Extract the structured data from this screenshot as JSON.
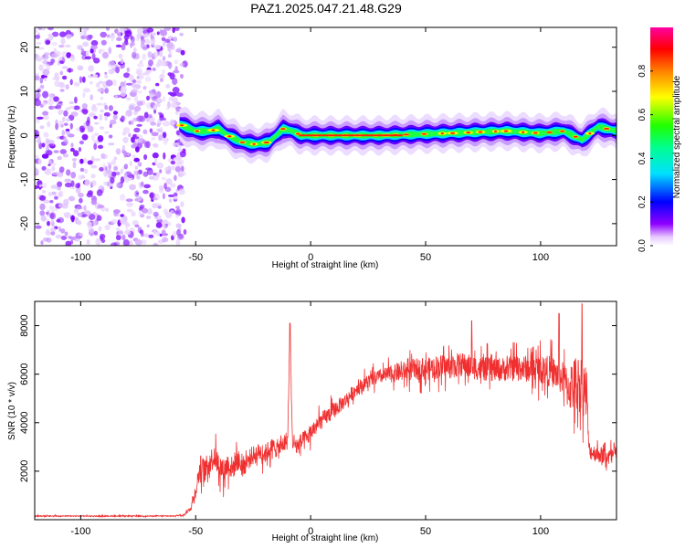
{
  "title": "PAZ1.2025.047.21.48.G29",
  "chart_data": [
    {
      "type": "heatmap",
      "xlabel": "Height of straight line (km)",
      "ylabel": "Frequency (Hz)",
      "xlim": [
        -120,
        133
      ],
      "ylim": [
        -25,
        24.5
      ],
      "xticks": [
        -100,
        -50,
        0,
        50,
        100
      ],
      "yticks": [
        -20,
        -10,
        0,
        10,
        20
      ],
      "colorbar": {
        "label": "Normalized spectral amplitude",
        "range": [
          0,
          1
        ],
        "ticks": [
          0.0,
          0.2,
          0.4,
          0.6,
          0.8
        ]
      },
      "noise_region_x": [
        -120,
        -57
      ],
      "ridge": [
        {
          "x": -57,
          "y": 2.5
        },
        {
          "x": -50,
          "y": 1.0
        },
        {
          "x": -44,
          "y": 1.0
        },
        {
          "x": -40,
          "y": 1.5
        },
        {
          "x": -36,
          "y": 0.0
        },
        {
          "x": -30,
          "y": -1.5
        },
        {
          "x": -24,
          "y": -2.0
        },
        {
          "x": -18,
          "y": -1.5
        },
        {
          "x": -12,
          "y": 1.5
        },
        {
          "x": -8,
          "y": 1.0
        },
        {
          "x": -4,
          "y": 0.0
        },
        {
          "x": 5,
          "y": 0.0
        },
        {
          "x": 30,
          "y": 0.0
        },
        {
          "x": 60,
          "y": 0.5
        },
        {
          "x": 85,
          "y": 1.0
        },
        {
          "x": 100,
          "y": 0.5
        },
        {
          "x": 110,
          "y": 1.0
        },
        {
          "x": 118,
          "y": -1.0
        },
        {
          "x": 125,
          "y": 2.0
        },
        {
          "x": 133,
          "y": 1.0
        }
      ]
    },
    {
      "type": "line",
      "xlabel": "Height of straight line (km)",
      "ylabel": "SNR (10 * v/v)",
      "xlim": [
        -120,
        133
      ],
      "ylim": [
        0,
        9000
      ],
      "xticks": [
        -100,
        -50,
        0,
        50,
        100
      ],
      "yticks": [
        2000,
        4000,
        6000,
        8000
      ],
      "color": "#f03030",
      "series": [
        {
          "x": [
            -120,
            -100,
            -80,
            -60,
            -55,
            -52,
            -50,
            -48,
            -46,
            -44,
            -42,
            -40,
            -38,
            -36,
            -34,
            -32,
            -30,
            -28,
            -26,
            -24,
            -22,
            -20,
            -18,
            -16,
            -14,
            -12,
            -10,
            -9,
            -8,
            -6,
            -4,
            -2,
            0,
            5,
            10,
            15,
            20,
            25,
            30,
            35,
            40,
            45,
            50,
            55,
            60,
            65,
            70,
            75,
            80,
            85,
            90,
            95,
            100,
            105,
            110,
            112,
            115,
            118,
            120,
            121,
            122,
            125,
            130,
            133
          ],
          "values": [
            150,
            150,
            150,
            150,
            200,
            500,
            1200,
            2200,
            2000,
            2400,
            2600,
            2300,
            2000,
            2300,
            2100,
            2500,
            2200,
            2300,
            2600,
            2700,
            2800,
            2700,
            2900,
            3000,
            2900,
            3100,
            3300,
            8100,
            3300,
            3000,
            3200,
            3300,
            3600,
            4100,
            4500,
            4900,
            5400,
            5700,
            5900,
            6000,
            6100,
            6200,
            6200,
            6300,
            6300,
            6400,
            6300,
            6200,
            6200,
            6200,
            6300,
            6200,
            6200,
            6100,
            5800,
            5400,
            5600,
            5600,
            5200,
            2900,
            2800,
            2700,
            2600,
            2700
          ],
          "noise_amp": [
            20,
            20,
            20,
            20,
            30,
            100,
            300,
            500,
            500,
            500,
            500,
            500,
            500,
            500,
            500,
            500,
            400,
            400,
            400,
            400,
            400,
            400,
            400,
            400,
            400,
            400,
            400,
            0,
            400,
            400,
            400,
            400,
            350,
            350,
            350,
            300,
            300,
            300,
            300,
            350,
            400,
            450,
            450,
            500,
            500,
            500,
            500,
            500,
            500,
            500,
            550,
            550,
            600,
            650,
            700,
            900,
            1200,
            1200,
            1200,
            350,
            350,
            350,
            350,
            350
          ]
        }
      ],
      "spikes": [
        {
          "x": -9,
          "y": 8100
        },
        {
          "x": 70,
          "y": 8200
        },
        {
          "x": 108,
          "y": 8500
        },
        {
          "x": 118,
          "y": 8900
        }
      ]
    }
  ]
}
